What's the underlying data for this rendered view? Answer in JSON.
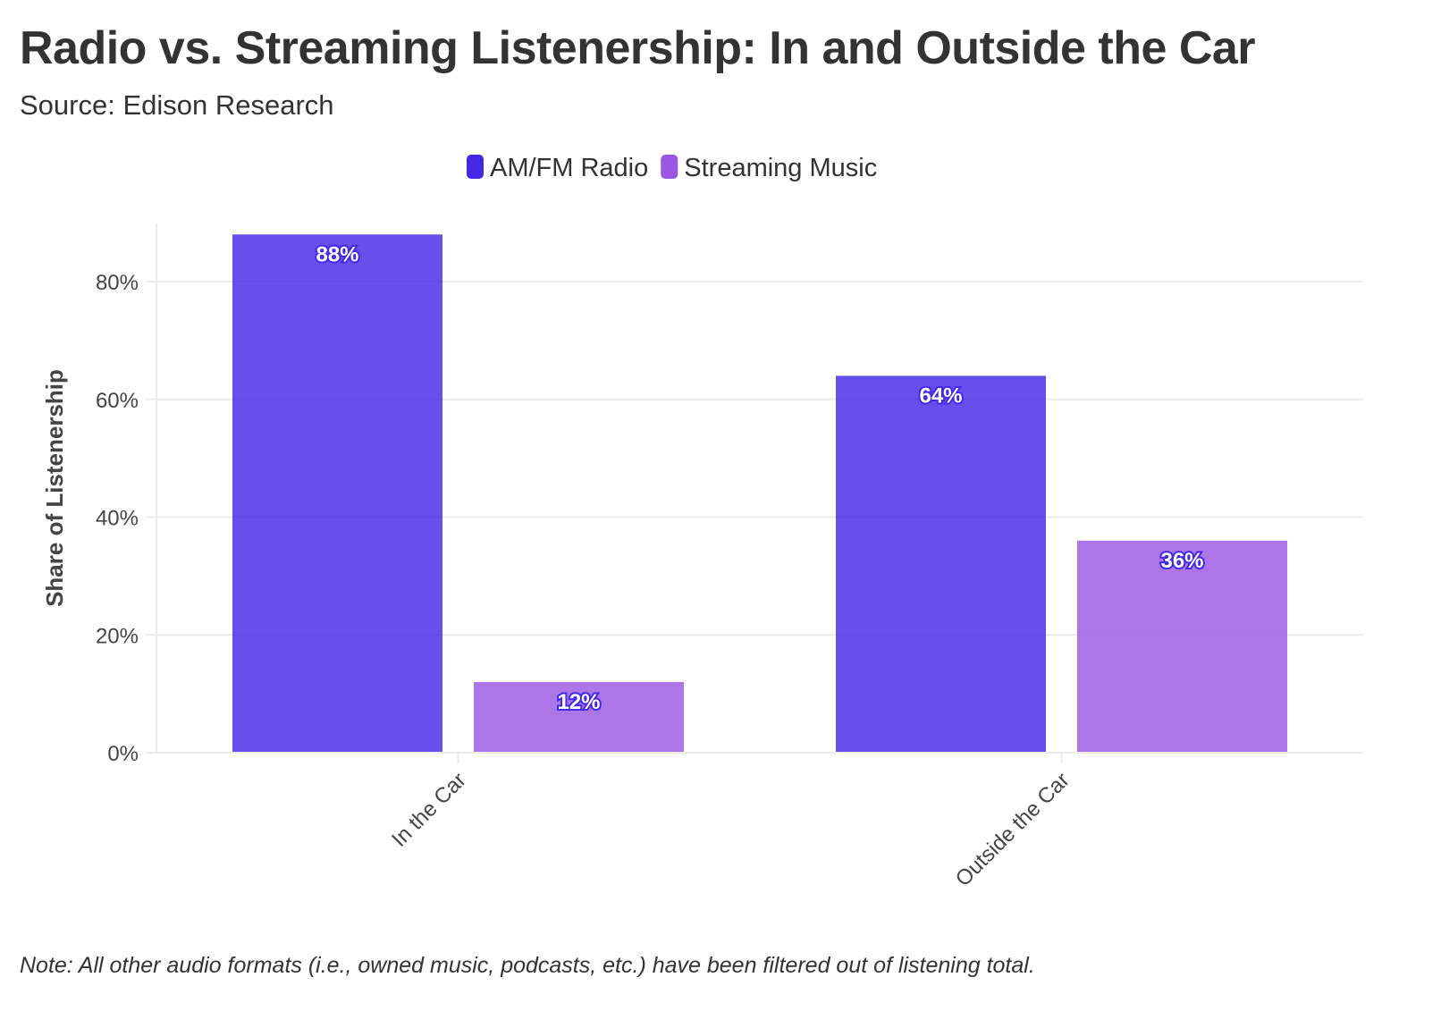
{
  "title": "Radio vs. Streaming Listenership: In and Outside the Car",
  "subtitle": "Source: Edison Research",
  "note": "Note: All other audio formats (i.e., owned music, podcasts, etc.) have been filtered out of listening total.",
  "chart_data": {
    "type": "bar",
    "title": "Radio vs. Streaming Listenership: In and Outside the Car",
    "xlabel": "",
    "ylabel": "Share of Listenership",
    "categories": [
      "In the Car",
      "Outside the Car"
    ],
    "series": [
      {
        "name": "AM/FM Radio",
        "values": [
          88,
          64
        ],
        "labels": [
          "88%",
          "64%"
        ],
        "color": "#4329e6"
      },
      {
        "name": "Streaming Music",
        "values": [
          12,
          36
        ],
        "labels": [
          "12%",
          "36%"
        ],
        "color": "#9a57e3"
      }
    ],
    "ylim": [
      0,
      90
    ],
    "yticks": [
      0,
      20,
      40,
      60,
      80
    ],
    "ytick_labels": [
      "0%",
      "20%",
      "40%",
      "60%",
      "80%"
    ],
    "grid": true,
    "legend": "top-center"
  }
}
